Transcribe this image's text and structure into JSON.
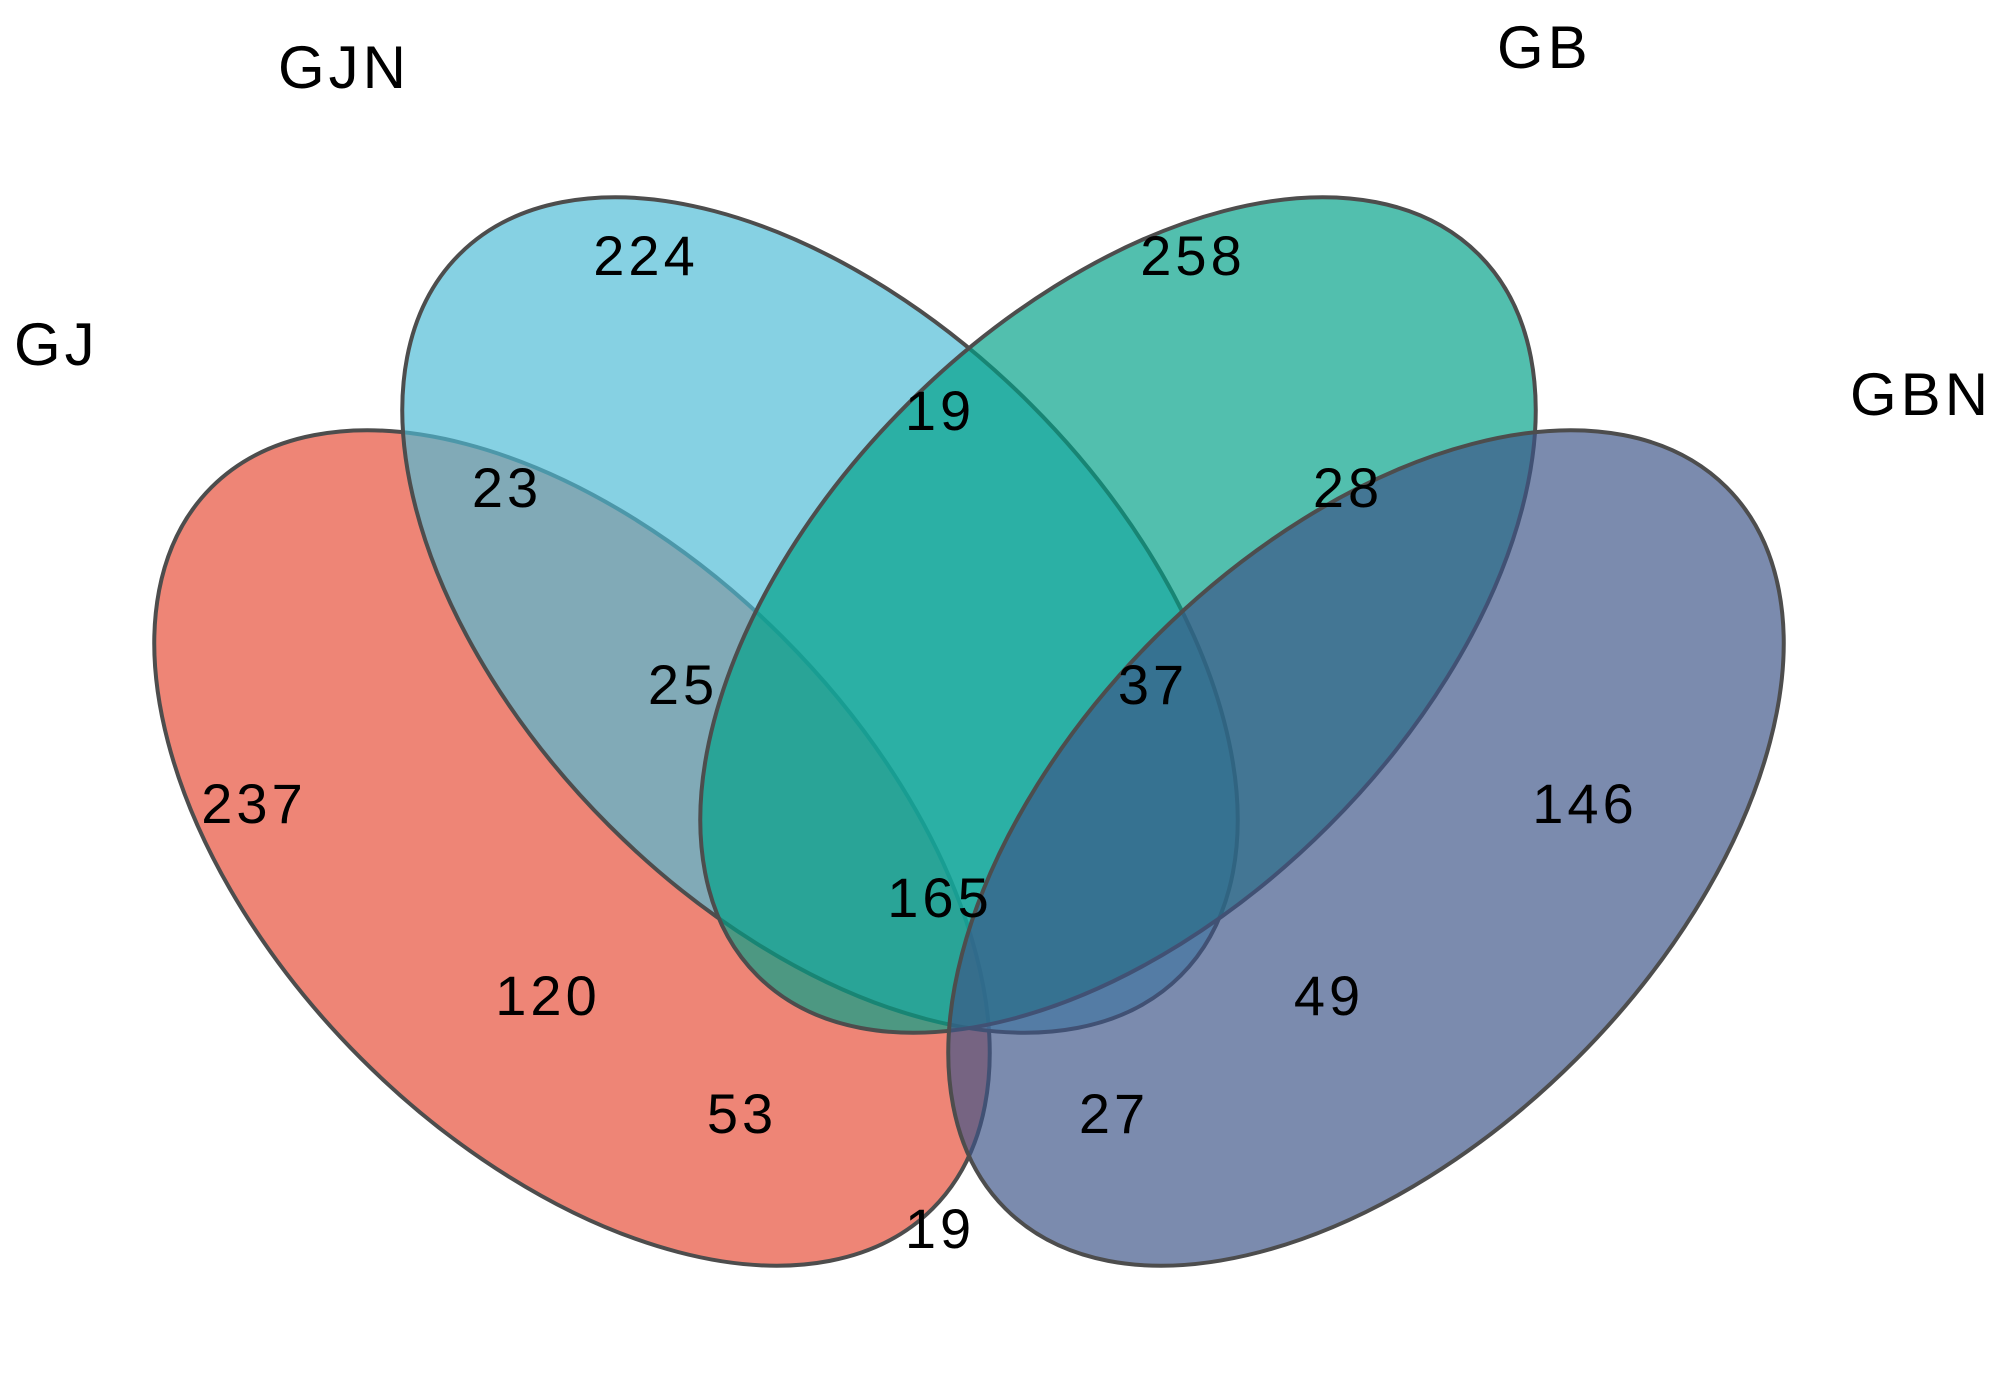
{
  "sets": [
    {
      "key": "gj",
      "label": "GJ",
      "color": "#E64B35"
    },
    {
      "key": "gjn",
      "label": "GJN",
      "color": "#4DBBD5"
    },
    {
      "key": "gb",
      "label": "GB",
      "color": "#00A087"
    },
    {
      "key": "gbn",
      "label": "GBN",
      "color": "#3C5488"
    }
  ],
  "regions": {
    "gj_only": "237",
    "gjn_only": "224",
    "gb_only": "258",
    "gbn_only": "146",
    "gj_gjn": "23",
    "gjn_gb": "19",
    "gb_gbn": "28",
    "gj_gbn": "19",
    "gj_gb": "120",
    "gjn_gbn": "49",
    "gj_gjn_gb": "25",
    "gjn_gb_gbn": "37",
    "gj_gb_gbn": "53",
    "gj_gjn_gbn": "27",
    "all_four": "165"
  }
}
